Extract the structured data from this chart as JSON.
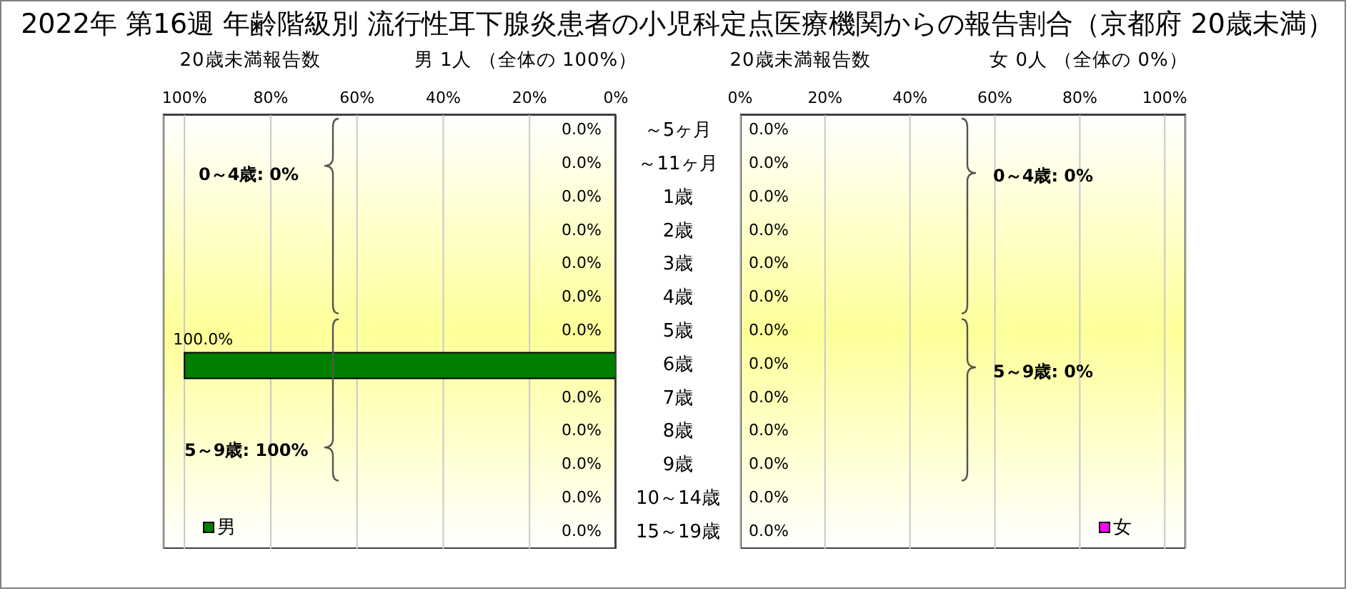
{
  "chart_data": [
    {
      "type": "bar",
      "orientation": "horizontal",
      "title": "2022年 第16週 年齢階級別 流行性耳下腺炎患者の小児科定点医療機関からの報告割合（京都府 20歳未満）",
      "subtitle": "20歳未満報告数",
      "xlabel": "男 1人 （全体の 100%）",
      "categories": [
        "～5ヶ月",
        "～11ヶ月",
        "1歳",
        "2歳",
        "3歳",
        "4歳",
        "5歳",
        "6歳",
        "7歳",
        "8歳",
        "9歳",
        "10～14歳",
        "15～19歳"
      ],
      "series": [
        {
          "name": "男",
          "color": "#008000",
          "values": [
            0,
            0,
            0,
            0,
            0,
            0,
            0,
            100,
            0,
            0,
            0,
            0,
            0
          ],
          "value_labels": [
            "0.0%",
            "0.0%",
            "0.0%",
            "0.0%",
            "0.0%",
            "0.0%",
            "0.0%",
            "100.0%",
            "0.0%",
            "0.0%",
            "0.0%",
            "0.0%",
            "0.0%"
          ]
        }
      ],
      "xlim": [
        105,
        0
      ],
      "xticks": [
        {
          "value": 100,
          "label": "100%"
        },
        {
          "value": 80,
          "label": "80%"
        },
        {
          "value": 60,
          "label": "60%"
        },
        {
          "value": 40,
          "label": "40%"
        },
        {
          "value": 20,
          "label": "20%"
        },
        {
          "value": 0,
          "label": "0%"
        }
      ],
      "grid": "x",
      "legend": "bottom left",
      "annotations": [
        "0～4歳: 0%",
        "5～9歳: 100%"
      ]
    },
    {
      "type": "bar",
      "orientation": "horizontal",
      "subtitle": "20歳未満報告数",
      "xlabel": "女 0人 （全体の 0%）",
      "categories": [
        null,
        null,
        null,
        null,
        null,
        null,
        null,
        null,
        null,
        null,
        null,
        null,
        null
      ],
      "series": [
        {
          "name": "女",
          "color": "#ff00ff",
          "values": [
            0,
            0,
            0,
            0,
            0,
            0,
            0,
            0,
            0,
            0,
            0,
            0,
            0
          ],
          "value_labels": [
            "0.0%",
            "0.0%",
            "0.0%",
            "0.0%",
            "0.0%",
            "0.0%",
            "0.0%",
            "0.0%",
            "0.0%",
            "0.0%",
            "0.0%",
            "0.0%",
            "0.0%"
          ]
        }
      ],
      "xlim": [
        0,
        105
      ],
      "xticks": [
        {
          "value": 0,
          "label": "0%"
        },
        {
          "value": 20,
          "label": "20%"
        },
        {
          "value": 40,
          "label": "40%"
        },
        {
          "value": 60,
          "label": "60%"
        },
        {
          "value": 80,
          "label": "80%"
        },
        {
          "value": 100,
          "label": "100%"
        }
      ],
      "grid": "x",
      "legend": "bottom right",
      "annotations": [
        "0～4歳: 0%",
        "5～9歳: 0%"
      ]
    }
  ]
}
